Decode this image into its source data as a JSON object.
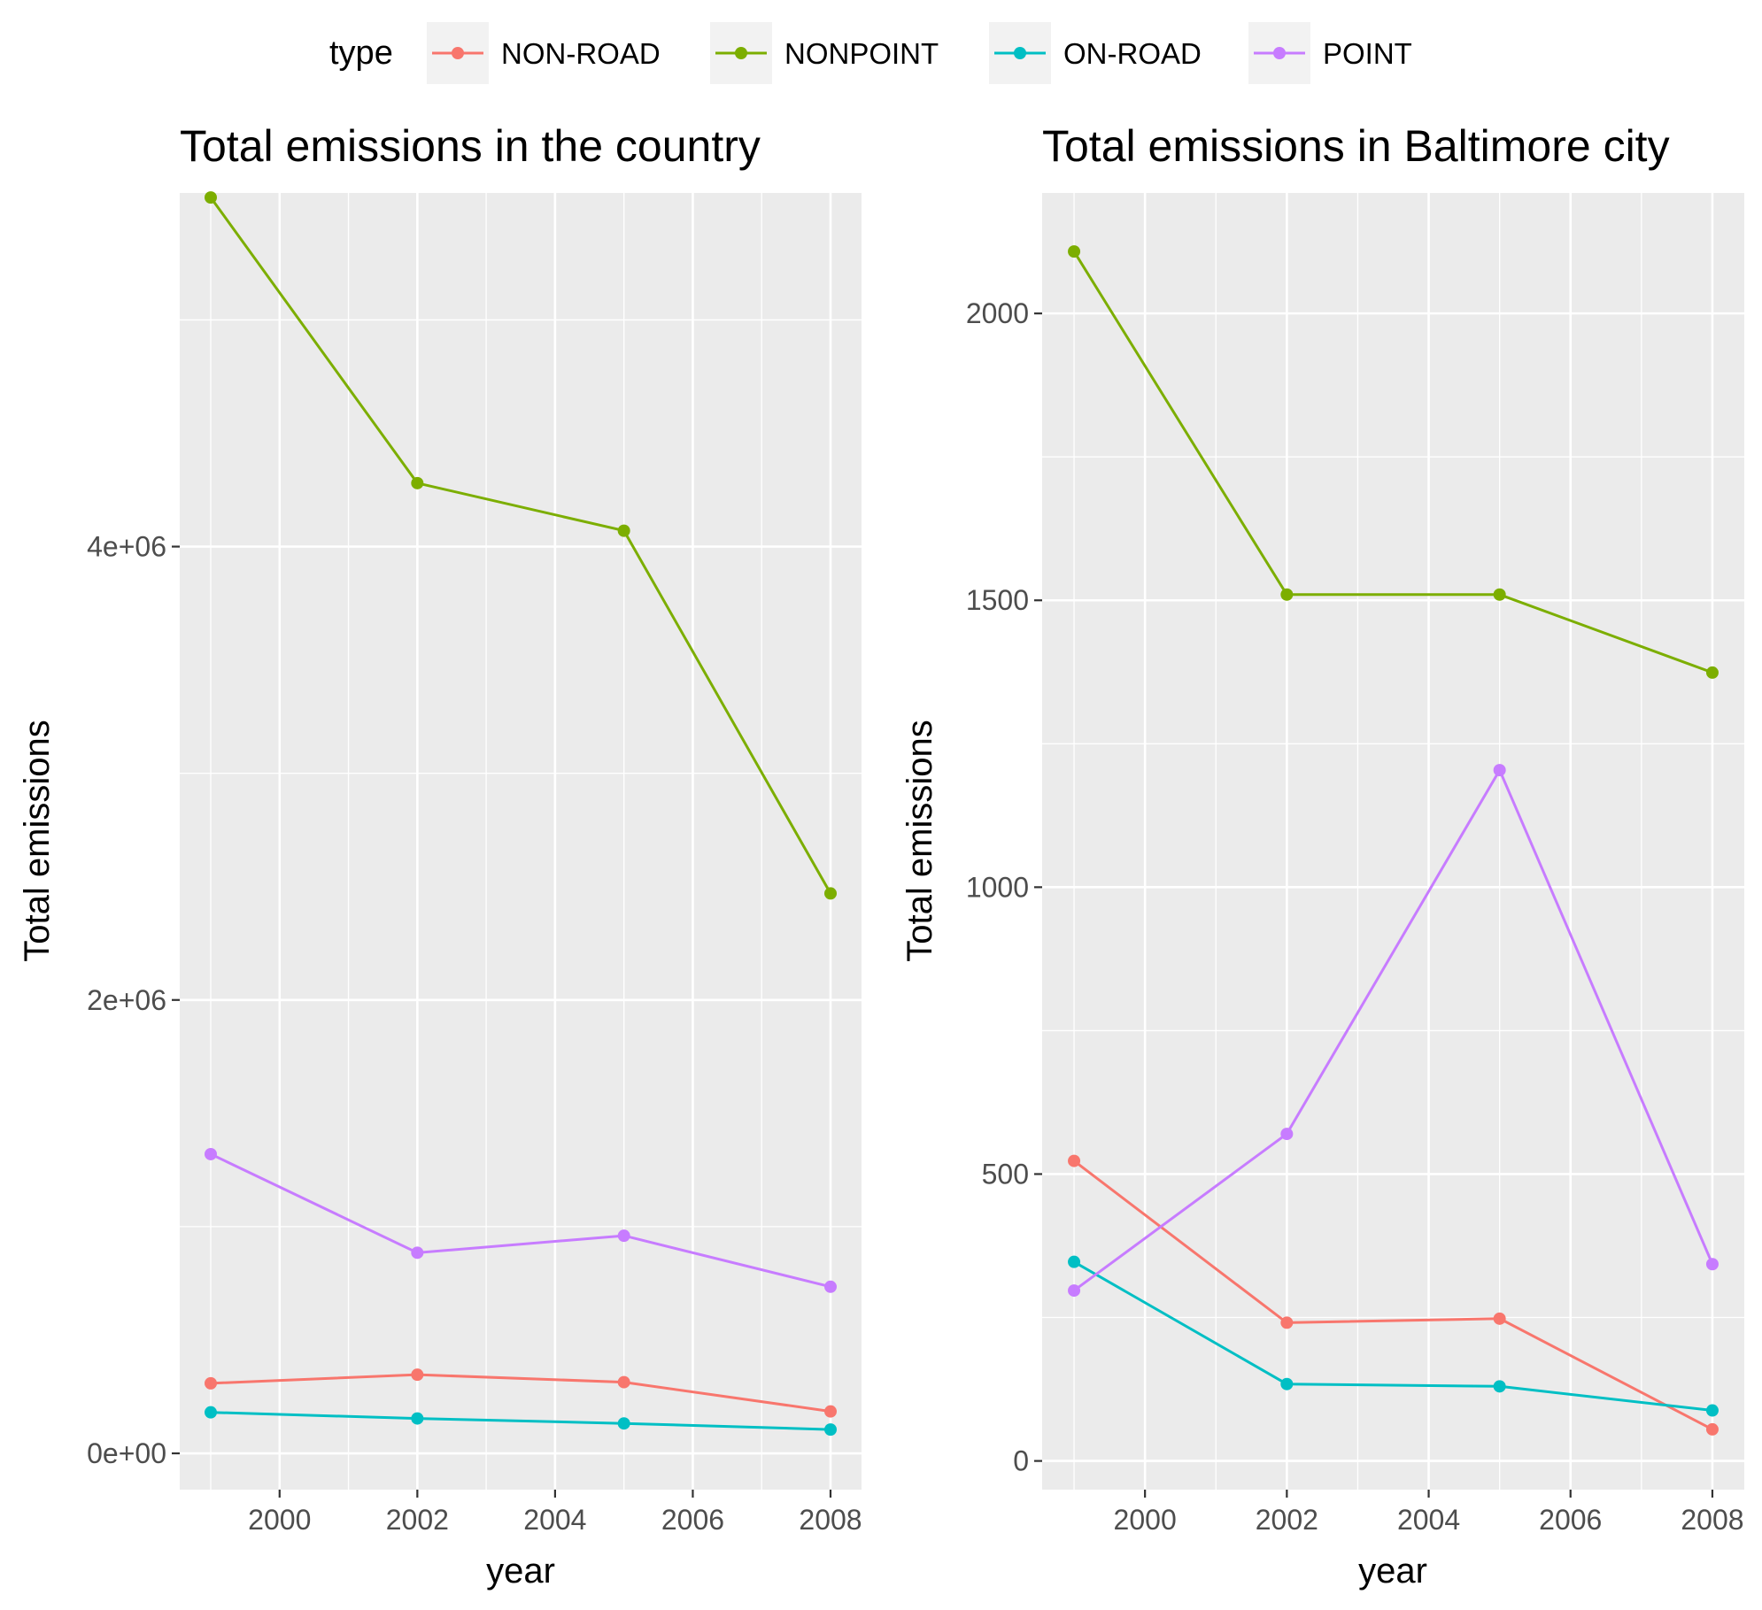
{
  "legend": {
    "title": "type",
    "position": "top",
    "entries": [
      {
        "label": "NON-ROAD",
        "color": "#F8766D"
      },
      {
        "label": "NONPOINT",
        "color": "#7CAE00"
      },
      {
        "label": "ON-ROAD",
        "color": "#00BFC4"
      },
      {
        "label": "POINT",
        "color": "#C77CFF"
      }
    ]
  },
  "chart_data": [
    {
      "type": "line",
      "title": "Total emissions in the country",
      "xlabel": "year",
      "ylabel": "Total emissions",
      "x": [
        1999,
        2002,
        2005,
        2008
      ],
      "xlim": [
        1998.55,
        2008.45
      ],
      "ylim": [
        -160000,
        5560000
      ],
      "xticks": [
        2000,
        2002,
        2004,
        2006,
        2008
      ],
      "xtick_labels": [
        "2000",
        "2002",
        "2004",
        "2006",
        "2008"
      ],
      "yticks": [
        0,
        2000000,
        4000000
      ],
      "ytick_labels": [
        "0e+00",
        "2e+06",
        "4e+06"
      ],
      "grid": true,
      "series": [
        {
          "name": "NON-ROAD",
          "color": "#F8766D",
          "values": [
            309000,
            347000,
            314000,
            185000
          ]
        },
        {
          "name": "NONPOINT",
          "color": "#7CAE00",
          "values": [
            5540000,
            4280000,
            4070000,
            2470000
          ]
        },
        {
          "name": "ON-ROAD",
          "color": "#00BFC4",
          "values": [
            181000,
            154000,
            132000,
            105000
          ]
        },
        {
          "name": "POINT",
          "color": "#C77CFF",
          "values": [
            1320000,
            885000,
            960000,
            735000
          ]
        }
      ]
    },
    {
      "type": "line",
      "title": "Total emissions in Baltimore city",
      "xlabel": "year",
      "ylabel": "Total emissions",
      "x": [
        1999,
        2002,
        2005,
        2008
      ],
      "xlim": [
        1998.55,
        2008.45
      ],
      "ylim": [
        -50,
        2210
      ],
      "xticks": [
        2000,
        2002,
        2004,
        2006,
        2008
      ],
      "xtick_labels": [
        "2000",
        "2002",
        "2004",
        "2006",
        "2008"
      ],
      "yticks": [
        0,
        500,
        1000,
        1500,
        2000
      ],
      "ytick_labels": [
        "0",
        "500",
        "1000",
        "1500",
        "2000"
      ],
      "grid": true,
      "series": [
        {
          "name": "NON-ROAD",
          "color": "#F8766D",
          "values": [
            523,
            241,
            248,
            55
          ]
        },
        {
          "name": "NONPOINT",
          "color": "#7CAE00",
          "values": [
            2108,
            1510,
            1510,
            1374
          ]
        },
        {
          "name": "ON-ROAD",
          "color": "#00BFC4",
          "values": [
            347,
            134,
            130,
            88
          ]
        },
        {
          "name": "POINT",
          "color": "#C77CFF",
          "values": [
            297,
            570,
            1204,
            343
          ]
        }
      ]
    }
  ]
}
